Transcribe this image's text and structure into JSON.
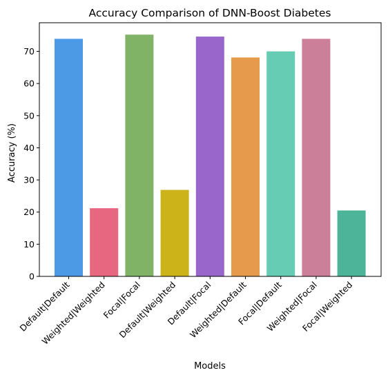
{
  "chart_data": {
    "type": "bar",
    "title": "Accuracy Comparison of DNN-Boost Diabetes",
    "xlabel": "Models",
    "ylabel": "Accuracy (%)",
    "ylim": [
      0,
      78.9
    ],
    "yticks": [
      0,
      10,
      20,
      30,
      40,
      50,
      60,
      70
    ],
    "grid": false,
    "categories": [
      "Default|Default",
      "Weighted|Weighted",
      "Focal|Focal",
      "Default|Weighted",
      "Default|Focal",
      "Weighted|Default",
      "Focal|Default",
      "Weighted|Focal",
      "Focal|Weighted"
    ],
    "values": [
      73.9,
      21.2,
      75.2,
      26.9,
      74.6,
      68.1,
      70.0,
      73.9,
      20.5
    ],
    "colors": [
      "#4c99e6",
      "#e6677f",
      "#80b366",
      "#ccb31a",
      "#9966cc",
      "#e69a4c",
      "#66ccb3",
      "#cc7f99",
      "#4db399"
    ]
  }
}
